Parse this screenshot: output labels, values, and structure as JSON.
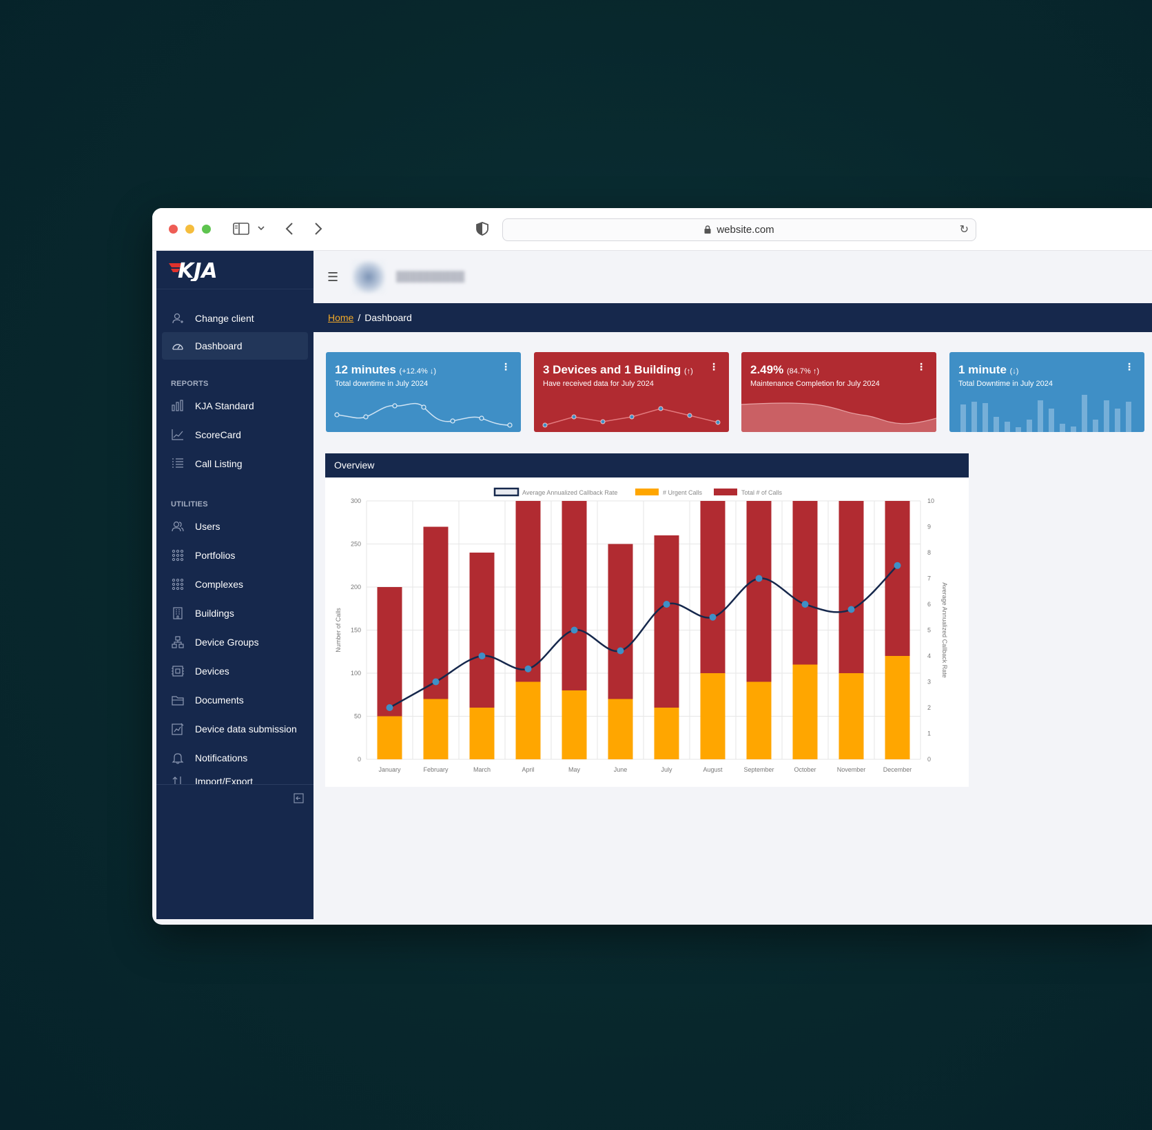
{
  "browser": {
    "url": "website.com"
  },
  "brand": {
    "logo_text": "KJA",
    "accent": "#e0322d",
    "navy": "#16284c"
  },
  "sidebar": {
    "top_items": [
      {
        "label": "Change client",
        "icon": "user-switch-icon"
      },
      {
        "label": "Dashboard",
        "icon": "gauge-icon",
        "active": true
      }
    ],
    "reports_heading": "REPORTS",
    "reports": [
      {
        "label": "KJA Standard",
        "icon": "bar-chart-icon"
      },
      {
        "label": "ScoreCard",
        "icon": "line-chart-icon"
      },
      {
        "label": "Call Listing",
        "icon": "list-icon"
      }
    ],
    "utilities_heading": "UTILITIES",
    "utilities": [
      {
        "label": "Users",
        "icon": "users-icon"
      },
      {
        "label": "Portfolios",
        "icon": "grid-dots-icon"
      },
      {
        "label": "Complexes",
        "icon": "grid-dots-icon"
      },
      {
        "label": "Buildings",
        "icon": "building-icon"
      },
      {
        "label": "Device Groups",
        "icon": "hierarchy-icon"
      },
      {
        "label": "Devices",
        "icon": "device-icon"
      },
      {
        "label": "Documents",
        "icon": "folder-icon"
      },
      {
        "label": "Device data submission",
        "icon": "upload-chart-icon"
      },
      {
        "label": "Notifications",
        "icon": "bell-icon"
      },
      {
        "label": "Import/Export",
        "icon": "import-export-icon"
      }
    ]
  },
  "breadcrumb": {
    "home": "Home",
    "separator": "/",
    "current": "Dashboard"
  },
  "cards": [
    {
      "title": "12 minutes",
      "sub": "(+12.4% ↓)",
      "desc": "Total downtime in July 2024",
      "color": "#3f8fc6",
      "spark": "line"
    },
    {
      "title": "3 Devices and 1 Building",
      "sub": "(↑)",
      "desc": "Have received data for July 2024",
      "color": "#b12b31",
      "spark": "line-dots"
    },
    {
      "title": "2.49%",
      "sub": "(84.7% ↑)",
      "desc": "Maintenance Completion for July 2024",
      "color": "#b12b31",
      "spark": "area"
    },
    {
      "title": "1 minute",
      "sub": "(↓)",
      "desc": "Total Downtime in July 2024",
      "color": "#3f8fc6",
      "spark": "bars"
    }
  ],
  "overview": {
    "title": "Overview"
  },
  "chart_data": {
    "type": "bar",
    "stacked": true,
    "categories": [
      "January",
      "February",
      "March",
      "April",
      "May",
      "June",
      "July",
      "August",
      "September",
      "October",
      "November",
      "December"
    ],
    "series": [
      {
        "name": "# Urgent Calls",
        "type": "bar",
        "color": "#ffa600",
        "values": [
          50,
          70,
          60,
          90,
          80,
          70,
          60,
          100,
          90,
          110,
          100,
          120
        ]
      },
      {
        "name": "Total # of Calls",
        "type": "bar",
        "color": "#b12b31",
        "values": [
          200,
          270,
          240,
          300,
          300,
          250,
          260,
          300,
          300,
          300,
          300,
          300
        ]
      },
      {
        "name": "Average Annualized Callback Rate",
        "type": "line",
        "axis": "right",
        "color": "#16284c",
        "point_color": "#3f8fc6",
        "values": [
          2,
          3,
          4,
          3.5,
          5,
          4.2,
          6,
          5.5,
          7,
          6,
          5.8,
          7.5
        ]
      }
    ],
    "ylabel": "Number of Calls",
    "y2label": "Average Annualized Callback Rate",
    "ylim": [
      0,
      300
    ],
    "y_ticks": [
      0,
      50,
      100,
      150,
      200,
      250,
      300
    ],
    "y2lim": [
      0,
      10
    ],
    "y2_ticks": [
      0,
      1,
      2,
      3,
      4,
      5,
      6,
      7,
      8,
      9,
      10
    ],
    "legend": "top-center",
    "grid": true
  }
}
